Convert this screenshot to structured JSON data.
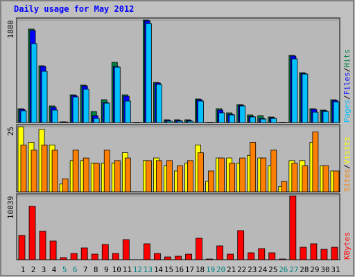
{
  "chart_data": [
    {
      "type": "bar",
      "title": "Daily usage for May 2012",
      "ylim": [
        0,
        1880
      ],
      "yticks": [
        1880
      ],
      "separator": "/",
      "series": [
        {
          "name": "Hits",
          "color": "#008040",
          "values": [
            254,
            1715,
            1042,
            305,
            13,
            508,
            686,
            203,
            419,
            1105,
            508,
            5,
            1880,
            737,
            51,
            51,
            51,
            432,
            5,
            254,
            178,
            330,
            140,
            127,
            102,
            5,
            1232,
            915,
            254,
            229,
            419
          ]
        },
        {
          "name": "Files",
          "color": "#0000ff",
          "values": [
            241,
            1690,
            1029,
            280,
            13,
            495,
            673,
            127,
            368,
            1029,
            483,
            5,
            1868,
            724,
            38,
            38,
            38,
            419,
            5,
            229,
            152,
            318,
            114,
            76,
            89,
            5,
            1220,
            902,
            241,
            216,
            406
          ]
        },
        {
          "name": "Pages",
          "color": "#00c0ff",
          "values": [
            216,
            1448,
            940,
            229,
            10,
            470,
            610,
            76,
            356,
            1016,
            394,
            5,
            1817,
            699,
            25,
            25,
            25,
            394,
            5,
            178,
            140,
            305,
            102,
            64,
            76,
            5,
            1169,
            889,
            190,
            203,
            381
          ]
        }
      ]
    },
    {
      "type": "bar",
      "ylim": [
        0,
        25
      ],
      "yticks": [
        25
      ],
      "separator": "/",
      "series": [
        {
          "name": "Visits",
          "color": "#ffff00",
          "values": [
            25,
            19,
            24,
            18,
            3,
            12,
            12,
            11,
            11,
            11,
            15,
            0,
            12,
            13,
            10,
            8,
            11,
            18,
            4,
            13,
            13,
            11,
            14,
            13,
            10,
            2,
            12,
            12,
            19,
            10,
            8
          ]
        },
        {
          "name": "Sites",
          "color": "#ff8000",
          "values": [
            18,
            16,
            18,
            16,
            5,
            16,
            13,
            11,
            16,
            12,
            13,
            0,
            12,
            12,
            12,
            10,
            12,
            15,
            8,
            13,
            11,
            13,
            19,
            13,
            16,
            4,
            11,
            10,
            23,
            10,
            8
          ]
        }
      ]
    },
    {
      "type": "bar",
      "ylim": [
        0,
        10039
      ],
      "yticks": [
        10039
      ],
      "categories": [
        "1",
        "2",
        "3",
        "4",
        "5",
        "6",
        "7",
        "8",
        "9",
        "10",
        "11",
        "12",
        "13",
        "14",
        "15",
        "16",
        "17",
        "18",
        "19",
        "20",
        "21",
        "22",
        "23",
        "24",
        "25",
        "26",
        "27",
        "28",
        "29",
        "30",
        "31"
      ],
      "category_colors": [
        "#000000",
        "#000000",
        "#000000",
        "#000000",
        "#008080",
        "#008080",
        "#000000",
        "#000000",
        "#000000",
        "#000000",
        "#000000",
        "#008080",
        "#008080",
        "#000000",
        "#000000",
        "#000000",
        "#000000",
        "#000000",
        "#008080",
        "#008080",
        "#000000",
        "#000000",
        "#000000",
        "#000000",
        "#000000",
        "#008080",
        "#008080",
        "#000000",
        "#000000",
        "#000000",
        "#000000"
      ],
      "series": [
        {
          "name": "KBytes",
          "color": "#ff0000",
          "values": [
            3819,
            8402,
            4474,
            2946,
            327,
            982,
            1855,
            873,
            2401,
            982,
            3164,
            0,
            2510,
            982,
            436,
            546,
            873,
            3383,
            109,
            2182,
            873,
            4583,
            1091,
            1746,
            1091,
            109,
            10039,
            1964,
            2510,
            1637,
            1964
          ]
        }
      ]
    }
  ]
}
